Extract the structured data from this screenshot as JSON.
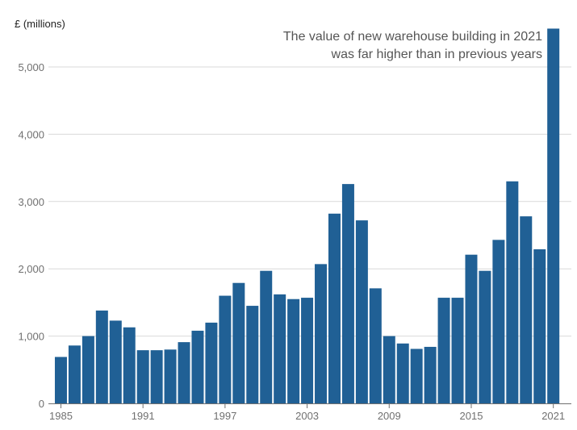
{
  "chart_data": {
    "type": "bar",
    "y_unit_label": "£ (millions)",
    "annotation": [
      "The value of new warehouse building in 2021",
      "was far higher than in previous years"
    ],
    "categories": [
      "1985",
      "1986",
      "1987",
      "1988",
      "1989",
      "1990",
      "1991",
      "1992",
      "1993",
      "1994",
      "1995",
      "1996",
      "1997",
      "1998",
      "1999",
      "2000",
      "2001",
      "2002",
      "2003",
      "2004",
      "2005",
      "2006",
      "2007",
      "2008",
      "2009",
      "2010",
      "2011",
      "2012",
      "2013",
      "2014",
      "2015",
      "2016",
      "2017",
      "2018",
      "2019",
      "2020",
      "2021"
    ],
    "values": [
      690,
      860,
      1000,
      1380,
      1230,
      1130,
      790,
      790,
      800,
      910,
      1080,
      1200,
      1600,
      1790,
      1450,
      1970,
      1620,
      1550,
      1570,
      2070,
      2820,
      3260,
      2720,
      1710,
      1000,
      890,
      810,
      840,
      1570,
      1570,
      2210,
      1970,
      2430,
      3300,
      2780,
      2290,
      5570
    ],
    "x_tick_labels": [
      "1985",
      "1991",
      "1997",
      "2003",
      "2009",
      "2015",
      "2021"
    ],
    "y_ticks": [
      0,
      1000,
      2000,
      3000,
      4000,
      5000
    ],
    "y_tick_labels": [
      "0",
      "1,000",
      "2,000",
      "3,000",
      "4,000",
      "5,000"
    ],
    "ylim": [
      0,
      5600
    ],
    "grid": "horizontal",
    "colors": {
      "bar": "#206095",
      "grid": "#d9d9d9",
      "axis": "#707070"
    }
  }
}
